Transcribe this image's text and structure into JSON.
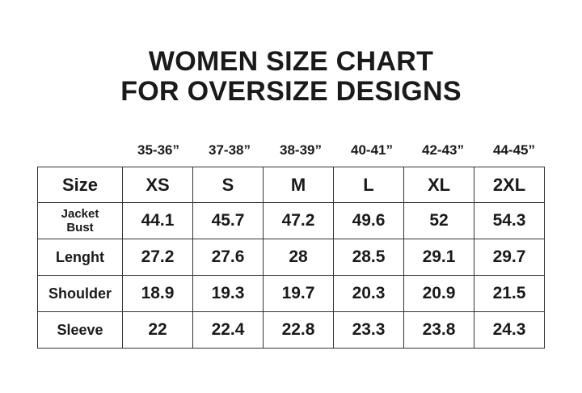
{
  "title": {
    "line1": "WOMEN SIZE CHART",
    "line2": "FOR OVERSIZE DESIGNS"
  },
  "bust_ranges": [
    "35-36”",
    "37-38”",
    "38-39”",
    "40-41”",
    "42-43”",
    "44-45”"
  ],
  "table": {
    "header_label": "Size",
    "sizes": [
      "XS",
      "S",
      "M",
      "L",
      "XL",
      "2XL"
    ],
    "rows": [
      {
        "label1": "Jacket",
        "label2": "Bust",
        "values": [
          "44.1",
          "45.7",
          "47.2",
          "49.6",
          "52",
          "54.3"
        ]
      },
      {
        "label1": "Lenght",
        "values": [
          "27.2",
          "27.6",
          "28",
          "28.5",
          "29.1",
          "29.7"
        ]
      },
      {
        "label1": "Shoulder",
        "values": [
          "18.9",
          "19.3",
          "19.7",
          "20.3",
          "20.9",
          "21.5"
        ]
      },
      {
        "label1": "Sleeve",
        "values": [
          "22",
          "22.4",
          "22.8",
          "23.3",
          "23.8",
          "24.3"
        ]
      }
    ]
  }
}
